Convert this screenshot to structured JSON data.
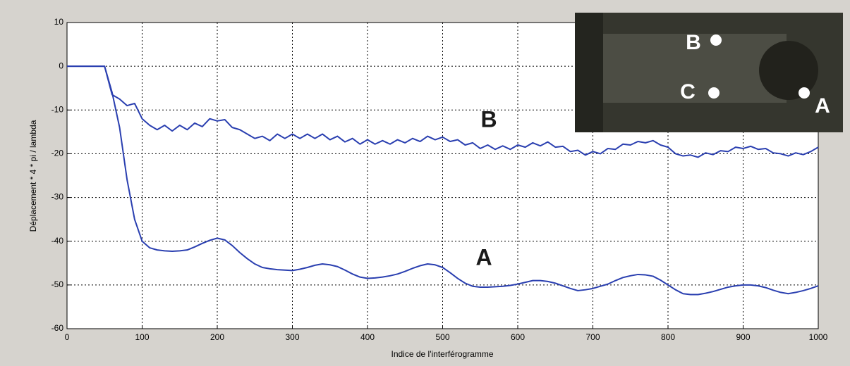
{
  "chart_data": {
    "type": "line",
    "xlabel": "Indice de l'interférogramme",
    "ylabel": "Déplacement * 4 * pi / lambda",
    "xlim": [
      0,
      1000
    ],
    "ylim": [
      -60,
      10
    ],
    "xticks": [
      0,
      100,
      200,
      300,
      400,
      500,
      600,
      700,
      800,
      900,
      1000
    ],
    "yticks": [
      -60,
      -50,
      -40,
      -30,
      -20,
      -10,
      0,
      10
    ],
    "grid": true,
    "x": [
      0,
      10,
      20,
      30,
      40,
      50,
      60,
      70,
      80,
      90,
      100,
      110,
      120,
      130,
      140,
      150,
      160,
      170,
      180,
      190,
      200,
      210,
      220,
      230,
      240,
      250,
      260,
      270,
      280,
      290,
      300,
      310,
      320,
      330,
      340,
      350,
      360,
      370,
      380,
      390,
      400,
      410,
      420,
      430,
      440,
      450,
      460,
      470,
      480,
      490,
      500,
      510,
      520,
      530,
      540,
      550,
      560,
      570,
      580,
      590,
      600,
      610,
      620,
      630,
      640,
      650,
      660,
      670,
      680,
      690,
      700,
      710,
      720,
      730,
      740,
      750,
      760,
      770,
      780,
      790,
      800,
      810,
      820,
      830,
      840,
      850,
      860,
      870,
      880,
      890,
      900,
      910,
      920,
      930,
      940,
      950,
      960,
      970,
      980,
      990,
      1000
    ],
    "series": [
      {
        "color": "#2a3fb0",
        "values": [
          0,
          0,
          0,
          0,
          0,
          0,
          -6,
          -14,
          -26,
          -35,
          -40,
          -41.5,
          -42,
          -42.2,
          -42.3,
          -42.2,
          -42,
          -41.3,
          -40.5,
          -39.8,
          -39.3,
          -39.7,
          -41,
          -42.6,
          -44,
          -45.2,
          -46,
          -46.3,
          -46.5,
          -46.6,
          -46.7,
          -46.4,
          -46,
          -45.5,
          -45.2,
          -45.4,
          -45.8,
          -46.6,
          -47.5,
          -48.2,
          -48.5,
          -48.4,
          -48.2,
          -47.9,
          -47.5,
          -46.9,
          -46.2,
          -45.6,
          -45.2,
          -45.4,
          -46,
          -47.2,
          -48.5,
          -49.6,
          -50.3,
          -50.5,
          -50.5,
          -50.4,
          -50.3,
          -50.1,
          -49.8,
          -49.4,
          -49,
          -49,
          -49.2,
          -49.6,
          -50.2,
          -50.8,
          -51.3,
          -51.1,
          -50.8,
          -50.3,
          -49.8,
          -49,
          -48.3,
          -47.9,
          -47.6,
          -47.7,
          -48,
          -48.9,
          -50,
          -51.1,
          -52,
          -52.2,
          -52.2,
          -51.9,
          -51.5,
          -51,
          -50.5,
          -50.2,
          -50,
          -50,
          -50.2,
          -50.6,
          -51.2,
          -51.7,
          -52,
          -51.7,
          -51.3,
          -50.8,
          -50.2
        ]
      },
      {
        "color": "#2a3fb0",
        "values": [
          0,
          0,
          0,
          0,
          0,
          0,
          -6.5,
          -7.5,
          -9,
          -8.5,
          -12,
          -13.5,
          -14.5,
          -13.5,
          -14.8,
          -13.5,
          -14.5,
          -13,
          -13.8,
          -12,
          -12.5,
          -12.2,
          -14,
          -14.5,
          -15.5,
          -16.5,
          -16,
          -17,
          -15.5,
          -16.5,
          -15.5,
          -16.5,
          -15.5,
          -16.5,
          -15.5,
          -16.8,
          -16,
          -17.3,
          -16.5,
          -17.8,
          -16.8,
          -17.8,
          -17,
          -17.8,
          -16.8,
          -17.5,
          -16.5,
          -17.2,
          -16,
          -16.8,
          -16.2,
          -17.2,
          -16.8,
          -18,
          -17.5,
          -18.8,
          -18,
          -19,
          -18.2,
          -19,
          -18,
          -18.5,
          -17.5,
          -18.2,
          -17.3,
          -18.5,
          -18.3,
          -19.5,
          -19.2,
          -20.3,
          -19.5,
          -20,
          -18.8,
          -19,
          -17.8,
          -18,
          -17.2,
          -17.5,
          -17,
          -18,
          -18.5,
          -20,
          -20.5,
          -20.3,
          -20.8,
          -19.8,
          -20.2,
          -19.3,
          -19.5,
          -18.5,
          -18.8,
          -18.3,
          -19,
          -18.8,
          -19.8,
          -20,
          -20.5,
          -19.8,
          -20.2,
          -19.5,
          -18.5
        ]
      }
    ],
    "annotations": [
      "B",
      "A"
    ],
    "inset_labels": [
      "B",
      "C",
      "A"
    ]
  }
}
